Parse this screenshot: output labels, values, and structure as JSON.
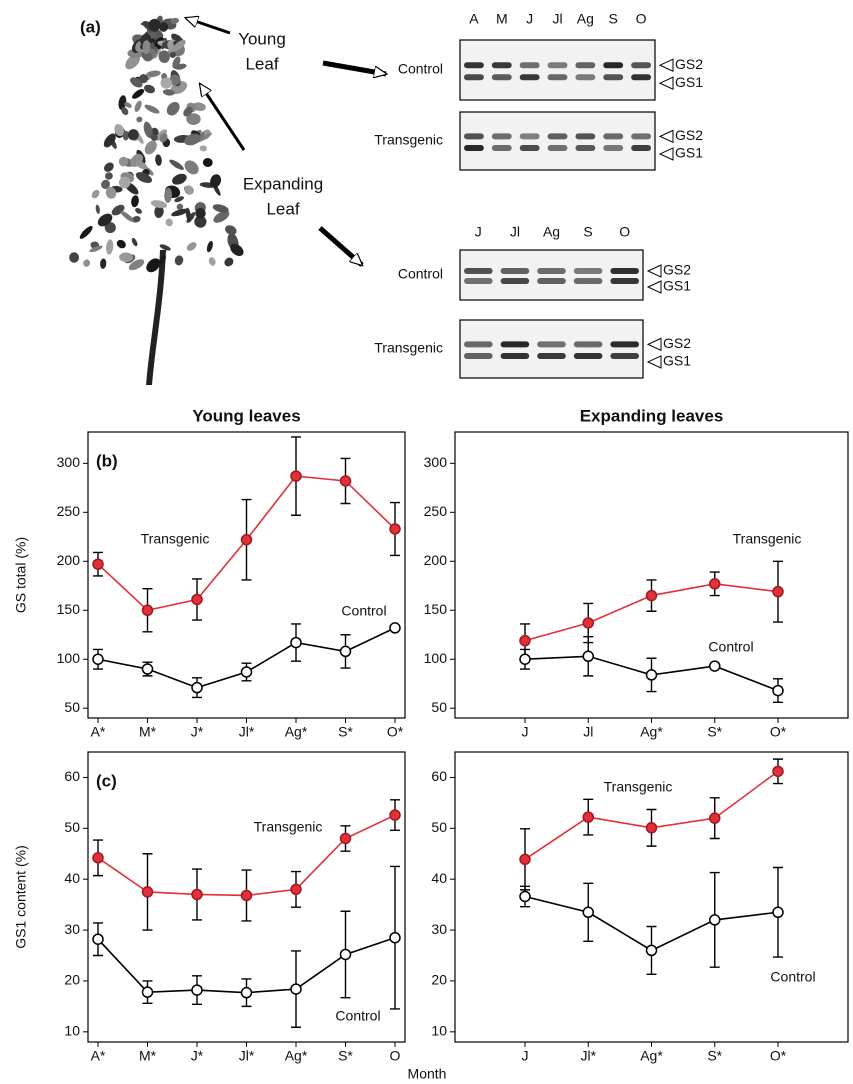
{
  "panel_a": {
    "label": "(a)",
    "young_leaf": [
      "Young",
      "Leaf"
    ],
    "expanding_leaf": [
      "Expanding",
      "Leaf"
    ],
    "blots": [
      {
        "lanes": [
          "A",
          "M",
          "J",
          "Jl",
          "Ag",
          "S",
          "O"
        ],
        "rows": [
          "Control",
          "Transgenic"
        ],
        "bands": [
          "GS2",
          "GS1"
        ]
      },
      {
        "lanes": [
          "J",
          "Jl",
          "Ag",
          "S",
          "O"
        ],
        "rows": [
          "Control",
          "Transgenic"
        ],
        "bands": [
          "GS2",
          "GS1"
        ]
      }
    ]
  },
  "x_label": "Month",
  "chart_data": [
    {
      "type": "line",
      "panel_label": "(b)",
      "title": "Young leaves",
      "y_label": "GS total (%)",
      "categories": [
        "A*",
        "M*",
        "J*",
        "Jl*",
        "Ag*",
        "S*",
        "O*"
      ],
      "ylim": [
        40,
        332
      ],
      "yticks": [
        50,
        100,
        150,
        200,
        250,
        300
      ],
      "series": [
        {
          "name": "Transgenic",
          "color": "#e0303a",
          "marker": "filled",
          "values": [
            197,
            150,
            161,
            222,
            287,
            282,
            233
          ],
          "errors": [
            12,
            22,
            21,
            41,
            40,
            23,
            27
          ]
        },
        {
          "name": "Control",
          "color": "#000000",
          "marker": "open",
          "values": [
            100,
            90,
            71,
            87,
            117,
            108,
            132
          ],
          "errors": [
            10,
            7,
            10,
            9,
            19,
            17,
            0
          ]
        }
      ]
    },
    {
      "type": "line",
      "title": "Expanding leaves",
      "categories": [
        "J",
        "Jl",
        "Ag*",
        "S*",
        "O*"
      ],
      "ylim": [
        40,
        332
      ],
      "yticks": [
        50,
        100,
        150,
        200,
        250,
        300
      ],
      "series": [
        {
          "name": "Transgenic",
          "color": "#e0303a",
          "marker": "filled",
          "values": [
            119,
            137,
            165,
            177,
            169
          ],
          "errors": [
            17,
            20,
            16,
            12,
            31
          ]
        },
        {
          "name": "Control",
          "color": "#000000",
          "marker": "open",
          "values": [
            100,
            103,
            84,
            93,
            68
          ],
          "errors": [
            10,
            20,
            17,
            0,
            12
          ]
        }
      ]
    },
    {
      "type": "line",
      "panel_label": "(c)",
      "y_label": "GS1 content (%)",
      "categories": [
        "A*",
        "M*",
        "J*",
        "Jl*",
        "Ag*",
        "S*",
        "O"
      ],
      "ylim": [
        8,
        65
      ],
      "yticks": [
        10,
        20,
        30,
        40,
        50,
        60
      ],
      "series": [
        {
          "name": "Transgenic",
          "color": "#e0303a",
          "marker": "filled",
          "values": [
            44.2,
            37.5,
            37,
            36.8,
            38,
            48,
            52.6
          ],
          "errors": [
            3.5,
            7.5,
            5,
            5,
            3.5,
            2.5,
            3
          ]
        },
        {
          "name": "Control",
          "color": "#000000",
          "marker": "open",
          "values": [
            28.2,
            17.8,
            18.2,
            17.7,
            18.4,
            25.2,
            28.5
          ],
          "errors": [
            3.2,
            2.2,
            2.8,
            2.7,
            7.5,
            8.5,
            14
          ]
        }
      ]
    },
    {
      "type": "line",
      "categories": [
        "J",
        "Jl*",
        "Ag*",
        "S*",
        "O*"
      ],
      "ylim": [
        8,
        65
      ],
      "yticks": [
        10,
        20,
        30,
        40,
        50,
        60
      ],
      "series": [
        {
          "name": "Transgenic",
          "color": "#e0303a",
          "marker": "filled",
          "values": [
            43.9,
            52.2,
            50.1,
            52,
            61.2
          ],
          "errors": [
            6,
            3.5,
            3.6,
            4,
            2.4
          ]
        },
        {
          "name": "Control",
          "color": "#000000",
          "marker": "open",
          "values": [
            36.6,
            33.5,
            26,
            32,
            33.5
          ],
          "errors": [
            2,
            5.7,
            4.7,
            9.3,
            8.8
          ]
        }
      ]
    }
  ]
}
